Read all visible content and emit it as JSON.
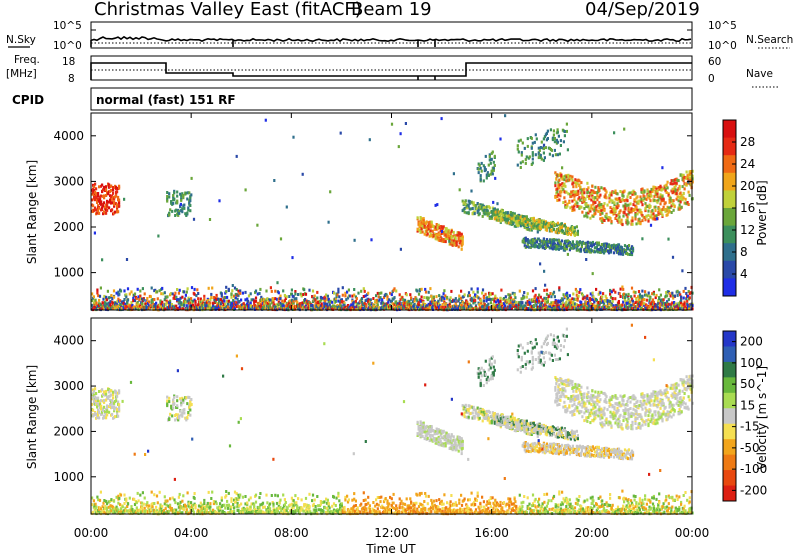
{
  "header": {
    "title": "Christmas Valley East (fitACF)",
    "beam": "Beam 19",
    "date": "04/Sep/2019"
  },
  "param_panels": {
    "nsky_label": "N.Sky",
    "nsearch_label": "N.Search",
    "freq_label_1": "Freq.",
    "freq_label_2": "[MHz]",
    "nave_label": "Nave",
    "cpid_label": "CPID",
    "cpid_text": "normal (fast) 151 RF",
    "noise_ticks": [
      "10^5",
      "10^0"
    ],
    "freq_ticks": [
      "18",
      "8"
    ],
    "nave_ticks": [
      "60",
      "0"
    ]
  },
  "colors": {
    "power": [
      "#1f2ee6",
      "#2a49a8",
      "#2f6f8c",
      "#3c8f5c",
      "#6aa63a",
      "#c0d13a",
      "#f0a51a",
      "#f06a14",
      "#e62a14",
      "#d80f0f"
    ],
    "velocity": [
      "#2437c8",
      "#2f5fb4",
      "#2f7a46",
      "#68b83c",
      "#a9dc52",
      "#c8c8c8",
      "#f5df52",
      "#f2a51c",
      "#ee7a14",
      "#e8480f",
      "#dd1f12"
    ]
  },
  "chart_data": [
    {
      "type": "heatmap",
      "name": "power",
      "ylabel": "Slant Range [km]",
      "ylim": [
        180,
        4500
      ],
      "yticks": [
        "1000",
        "2000",
        "3000",
        "4000"
      ],
      "xlim": [
        0,
        24
      ],
      "colorbar_label": "Power [dB]",
      "colorbar_ticks": [
        "4",
        "8",
        "12",
        "16",
        "20",
        "24",
        "28"
      ],
      "colorbar_range": [
        0,
        32
      ]
    },
    {
      "type": "heatmap",
      "name": "velocity",
      "ylabel": "Slant Range [km]",
      "ylim": [
        180,
        4500
      ],
      "yticks": [
        "1000",
        "2000",
        "3000",
        "4000"
      ],
      "xlim": [
        0,
        24
      ],
      "xticks": [
        "00:00",
        "04:00",
        "08:00",
        "12:00",
        "16:00",
        "20:00",
        "00:00"
      ],
      "xlabel": "Time UT",
      "colorbar_label": "Velocity [m s^-1]",
      "colorbar_ticks": [
        "200",
        "100",
        "50",
        "15",
        "-15",
        "-50",
        "-100",
        "-200"
      ]
    }
  ]
}
